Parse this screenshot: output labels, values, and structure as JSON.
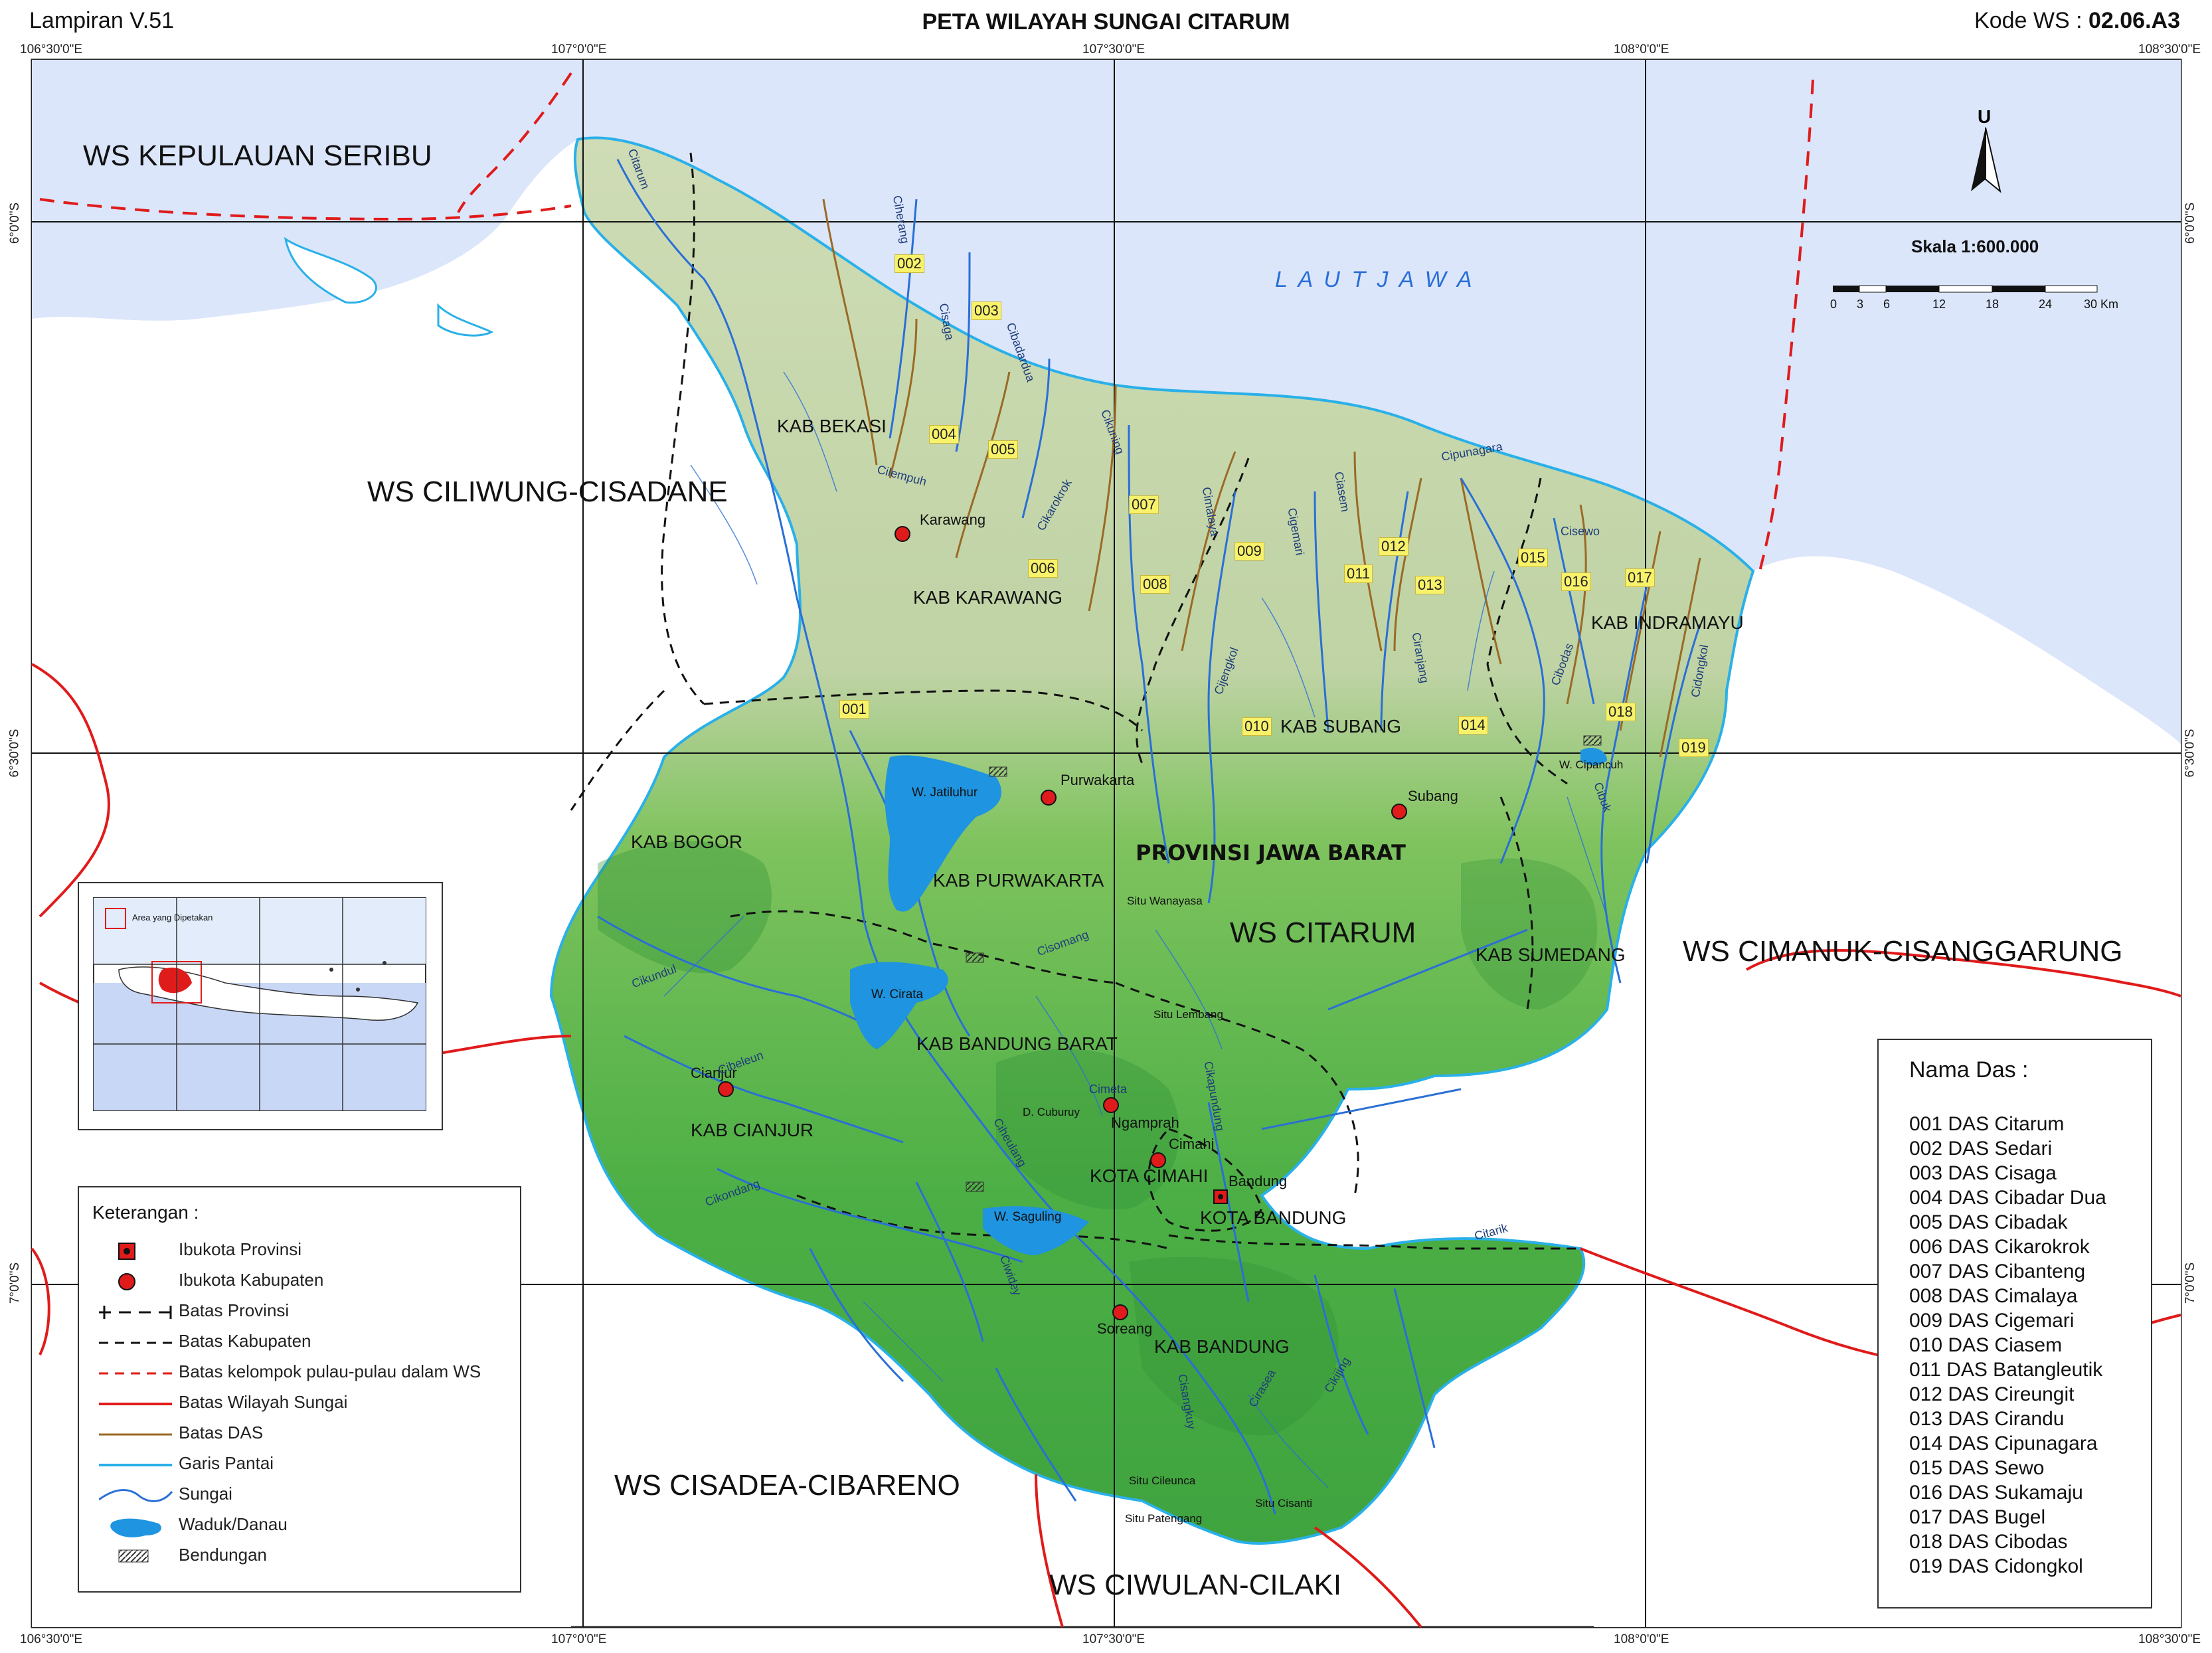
{
  "header": {
    "left": "Lampiran V.51",
    "title": "PETA WILAYAH SUNGAI CITARUM",
    "code_label": "Kode WS :",
    "code_value": "02.06.A3"
  },
  "grid": {
    "top_lon": [
      "106°30'0\"E",
      "107°0'0\"E",
      "107°30'0\"E",
      "108°0'0\"E",
      "108°30'0\"E"
    ],
    "bottom_lon": [
      "106°30'0\"E",
      "107°0'0\"E",
      "107°30'0\"E",
      "108°0'0\"E",
      "108°30'0\"E"
    ],
    "left_lat": [
      "6°0'0\"S",
      "6°30'0\"S",
      "7°0'0\"S"
    ],
    "right_lat": [
      "6°0'0\"S",
      "6°30'0\"S",
      "7°0'0\"S"
    ]
  },
  "ws_labels": {
    "seribu": "WS KEPULAUAN SERIBU",
    "ciliwung": "WS CILIWUNG-CISADANE",
    "citarum": "WS CITARUM",
    "cimanuk": "WS CIMANUK-CISANGGARUNG",
    "cisadea": "WS CISADEA-CIBARENO",
    "ciwulan": "WS CIWULAN-CILAKI"
  },
  "sea_label": "L A U T   J A W A",
  "province_label": "PROVINSI JAWA BARAT",
  "kab_labels": {
    "bekasi": "KAB BEKASI",
    "karawang": "KAB KARAWANG",
    "indramayu": "KAB INDRAMAYU",
    "subang": "KAB SUBANG",
    "bogor": "KAB BOGOR",
    "purwakarta": "KAB PURWAKARTA",
    "sumedang": "KAB SUMEDANG",
    "bandung_barat": "KAB BANDUNG BARAT",
    "cianjur": "KAB CIANJUR",
    "kota_cimahi": "KOTA CIMAHI",
    "kota_bandung": "KOTA BANDUNG",
    "bandung": "KAB BANDUNG"
  },
  "city_labels": {
    "karawang": "Karawang",
    "purwakarta": "Purwakarta",
    "subang": "Subang",
    "cianjur": "Cianjur",
    "ngamprah": "Ngamprah",
    "cimahi": "Cimahi",
    "bandung": "Bandung",
    "soreang": "Soreang",
    "w_jatiluhur": "W. Jatiluhur",
    "w_cirata": "W. Cirata",
    "w_saguling": "W. Saguling",
    "w_cipancuh": "W. Cipancuh",
    "situ_wanayasa": "Situ Wanayasa",
    "situ_lembang": "Situ Lembang",
    "situ_cileunca": "Situ Cileunca",
    "situ_patengang": "Situ Patengang",
    "situ_cisanti": "Situ Cisanti",
    "d_cuburuy": "D. Cuburuy"
  },
  "river_labels": {
    "citarum": "Citarum",
    "ciherang": "Ciherang",
    "cisaga": "Cisaga",
    "cibadardua": "Cibadardua",
    "cikuning": "Cikuning",
    "cilempuh": "Cilempuh",
    "cikarokrok": "Cikarokrok",
    "cimalaya": "Cimalaya",
    "cigemari": "Cigemari",
    "ciasem": "Ciasem",
    "cipunagara": "Cipunagara",
    "cisewo": "Cisewo",
    "cibodas": "Cibodas",
    "cidongkol": "Cidongkol",
    "ciranjang": "Ciranjang",
    "cijengkol": "Cijengkol",
    "cisomang": "Cisomang",
    "cikundul": "Cikundul",
    "cibeleun": "Cibeleun",
    "cimeta": "Cimeta",
    "cikapundung": "Cikapundung",
    "cisangkuy": "Cisangkuy",
    "cirasea": "Cirasea",
    "cikijing": "Cikijing",
    "ciwidey": "Ciwidey",
    "cikondang": "Cikondang",
    "citarik": "Citarik",
    "cibuk": "Cibuk",
    "ciheulang": "Ciheulang"
  },
  "das_tags": [
    "001",
    "002",
    "003",
    "004",
    "005",
    "006",
    "007",
    "008",
    "009",
    "010",
    "011",
    "012",
    "013",
    "014",
    "015",
    "016",
    "017",
    "018",
    "019"
  ],
  "north_label": "U",
  "scale": {
    "title": "Skala 1:600.000",
    "ticks": [
      "0",
      "3",
      "6",
      "12",
      "18",
      "24",
      "30 Km"
    ]
  },
  "inset": {
    "label": "Area yang Dipetakan"
  },
  "legend": {
    "title": "Keterangan :",
    "items": [
      {
        "label": "Ibukota Provinsi",
        "symbol": "provincial-capital-icon"
      },
      {
        "label": "Ibukota Kabupaten",
        "symbol": "regency-capital-icon"
      },
      {
        "label": "Batas Provinsi",
        "symbol": "province-boundary-line"
      },
      {
        "label": "Batas Kabupaten",
        "symbol": "regency-boundary-line"
      },
      {
        "label": "Batas kelompok pulau-pulau dalam WS",
        "symbol": "island-group-boundary-line"
      },
      {
        "label": "Batas Wilayah Sungai",
        "symbol": "river-region-boundary-line"
      },
      {
        "label": "Batas DAS",
        "symbol": "watershed-boundary-line"
      },
      {
        "label": "Garis Pantai",
        "symbol": "coastline-line"
      },
      {
        "label": "Sungai",
        "symbol": "river-line"
      },
      {
        "label": "Waduk/Danau",
        "symbol": "reservoir-icon"
      },
      {
        "label": "Bendungan",
        "symbol": "dam-icon"
      }
    ]
  },
  "das_list": {
    "title": "Nama Das :",
    "items": [
      "001 DAS Citarum",
      "002 DAS Sedari",
      "003 DAS Cisaga",
      "004 DAS Cibadar Dua",
      "005 DAS Cibadak",
      "006 DAS Cikarokrok",
      "007 DAS Cibanteng",
      "008 DAS Cimalaya",
      "009 DAS Cigemari",
      "010 DAS Ciasem",
      "011 DAS Batangleutik",
      "012 DAS Cireungit",
      "013 DAS Cirandu",
      "014 DAS Cipunagara",
      "015 DAS Sewo",
      "016 DAS Sukamaju",
      "017 DAS Bugel",
      "018 DAS Cibodas",
      "019 DAS Cidongkol"
    ]
  },
  "colors": {
    "sea": "#dbe6fb",
    "lowland": "#c9d7b0",
    "highland": "#5dbb4a",
    "river": "#2a6fd6",
    "reservoir": "#1f94e0",
    "ws_boundary": "#e01b1b",
    "das_boundary": "#9a6a25",
    "coast": "#2ab0e8"
  }
}
